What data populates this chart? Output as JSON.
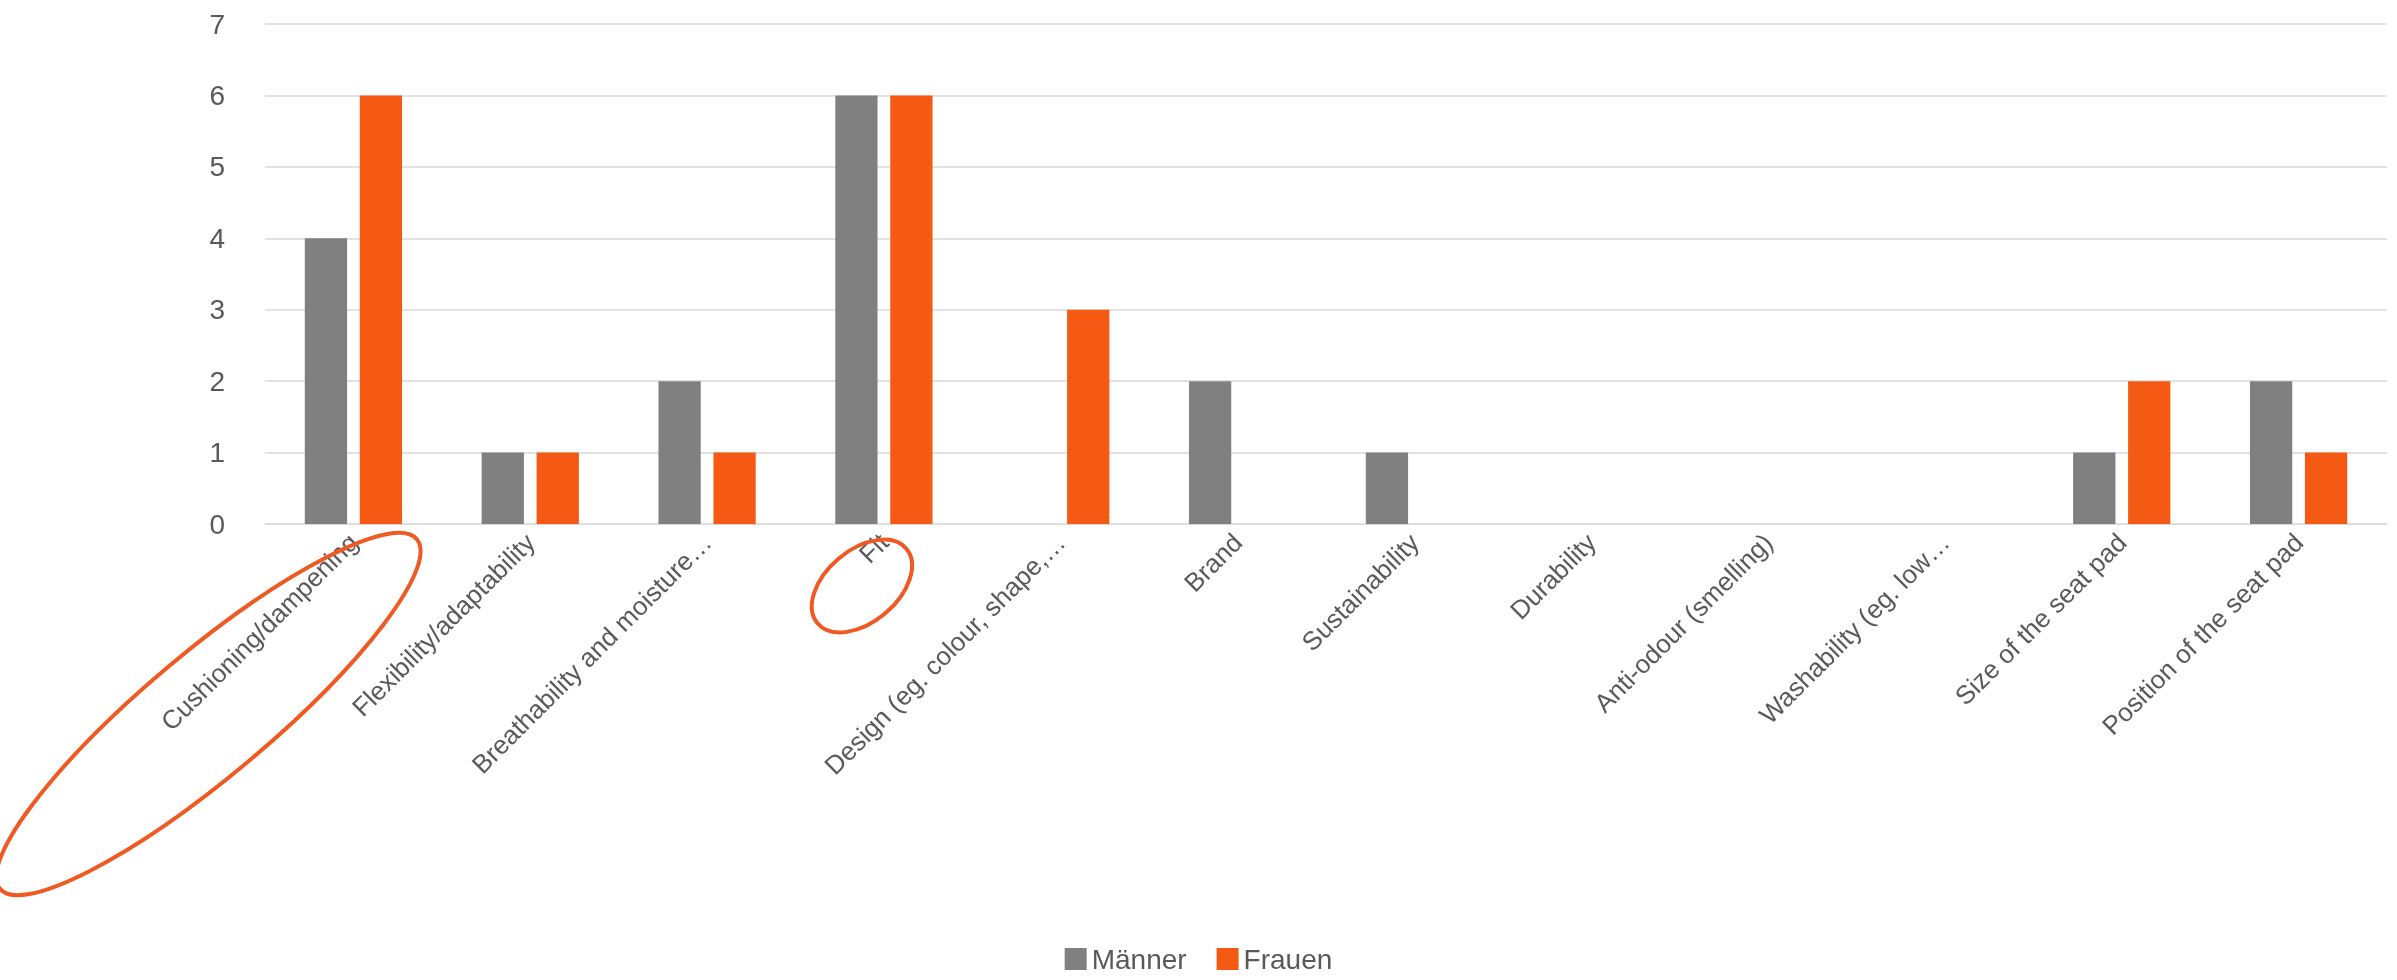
{
  "chart_data": {
    "type": "bar",
    "categories": [
      "Cushioning/dampening",
      "Flexibility/adaptability",
      "Breathability and moisture…",
      "Fit",
      "Design (eg. colour, shape,…",
      "Brand",
      "Sustainability",
      "Durability",
      "Anti-odour (smelling)",
      "Washability (eg. low…",
      "Size of the seat pad",
      "Position of the seat pad"
    ],
    "series": [
      {
        "name": "Männer",
        "color": "#808080",
        "values": [
          4,
          1,
          2,
          6,
          0,
          2,
          1,
          0,
          0,
          0,
          1,
          2
        ]
      },
      {
        "name": "Frauen",
        "color": "#f55a14",
        "values": [
          6,
          1,
          1,
          6,
          3,
          0,
          0,
          0,
          0,
          0,
          2,
          1
        ]
      }
    ],
    "ylim": [
      0,
      7
    ],
    "yticks": [
      0,
      1,
      2,
      3,
      4,
      5,
      6,
      7
    ],
    "grid": "y",
    "legend": "bottom"
  }
}
